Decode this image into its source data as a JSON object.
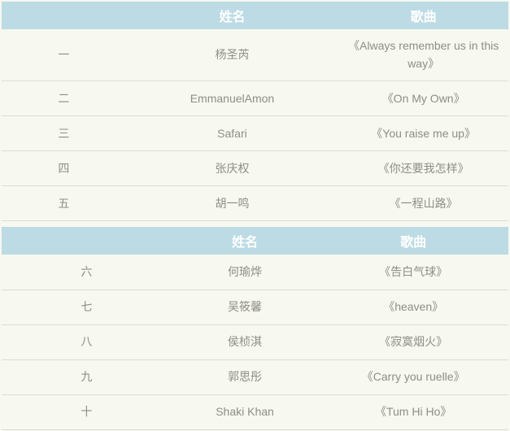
{
  "colors": {
    "page_bg": "#f7f8ef",
    "header_bg": "#bddbe4",
    "header_text": "#ffffff",
    "body_text": "#8e8e87",
    "row_border": "#dddcd1"
  },
  "tables": [
    {
      "headers": [
        "",
        "姓名",
        "歌曲"
      ],
      "rows": [
        [
          "一",
          "杨圣芮",
          "《Always remember us in this way》"
        ],
        [
          "二",
          "EmmanuelAmon",
          "《On My Own》"
        ],
        [
          "三",
          "Safari",
          "《You raise me up》"
        ],
        [
          "四",
          "张庆权",
          "《你还要我怎样》"
        ],
        [
          "五",
          "胡一鸣",
          "《一程山路》"
        ]
      ]
    },
    {
      "headers": [
        "",
        "姓名",
        "歌曲"
      ],
      "rows": [
        [
          "六",
          "何瑜烨",
          "《告白气球》"
        ],
        [
          "七",
          "吴筱馨",
          "《heaven》"
        ],
        [
          "八",
          "侯桢淇",
          "《寂寞烟火》"
        ],
        [
          "九",
          "郭思彤",
          "《Carry you ruelle》"
        ],
        [
          "十",
          "Shaki Khan",
          "《Tum Hi Ho》"
        ]
      ]
    }
  ]
}
